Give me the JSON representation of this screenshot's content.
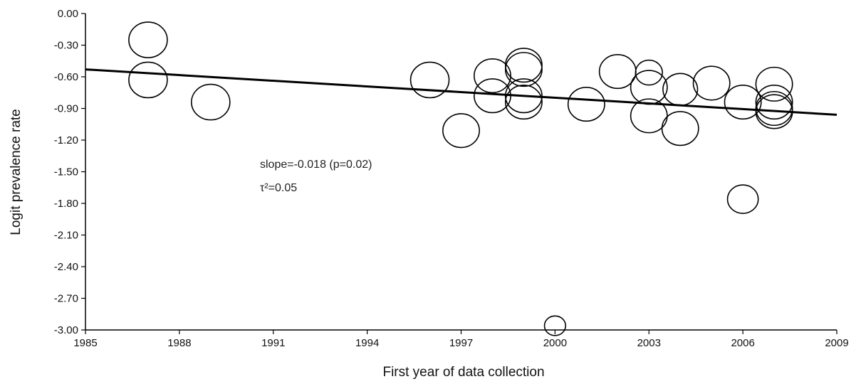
{
  "chart_data": {
    "type": "scatter",
    "xlabel": "First year of data collection",
    "ylabel": "Logit prevalence rate",
    "xlim": [
      1985,
      2009
    ],
    "ylim": [
      -3.0,
      0.0
    ],
    "x_ticks": [
      "1985",
      "1988",
      "1991",
      "1994",
      "1997",
      "2000",
      "2003",
      "2006",
      "2009"
    ],
    "x_tick_values": [
      1985,
      1988,
      1991,
      1994,
      1997,
      2000,
      2003,
      2006,
      2009
    ],
    "y_ticks": [
      "0.00",
      "-0.30",
      "-0.60",
      "-0.90",
      "-1.20",
      "-1.50",
      "-1.80",
      "-2.10",
      "-2.40",
      "-2.70",
      "-3.00"
    ],
    "y_tick_values": [
      0.0,
      -0.3,
      -0.6,
      -0.9,
      -1.2,
      -1.5,
      -1.8,
      -2.1,
      -2.4,
      -2.7,
      -3.0
    ],
    "grid": false,
    "annotations": [
      "slope=-0.018 (p=0.02)",
      "τ²=0.05"
    ],
    "regression_line": {
      "x": [
        1985,
        2009
      ],
      "y": [
        -0.53,
        -0.96
      ]
    },
    "points": [
      {
        "x": 1987.0,
        "y": -0.25,
        "weight": 1.0
      },
      {
        "x": 1987.0,
        "y": -0.63,
        "weight": 1.0
      },
      {
        "x": 1989.0,
        "y": -0.84,
        "weight": 1.0
      },
      {
        "x": 1996.0,
        "y": -0.63,
        "weight": 1.0
      },
      {
        "x": 1997.0,
        "y": -1.11,
        "weight": 0.95
      },
      {
        "x": 1998.0,
        "y": -0.59,
        "weight": 0.95
      },
      {
        "x": 1998.0,
        "y": -0.78,
        "weight": 0.95
      },
      {
        "x": 1999.0,
        "y": -0.49,
        "weight": 0.95
      },
      {
        "x": 1999.0,
        "y": -0.53,
        "weight": 0.95
      },
      {
        "x": 1999.0,
        "y": -0.78,
        "weight": 0.95
      },
      {
        "x": 1999.0,
        "y": -0.84,
        "weight": 0.95
      },
      {
        "x": 2000.0,
        "y": -2.96,
        "weight": 0.55
      },
      {
        "x": 2001.0,
        "y": -0.86,
        "weight": 0.95
      },
      {
        "x": 2002.0,
        "y": -0.55,
        "weight": 0.95
      },
      {
        "x": 2003.0,
        "y": -0.56,
        "weight": 0.7
      },
      {
        "x": 2003.0,
        "y": -0.7,
        "weight": 0.95
      },
      {
        "x": 2003.0,
        "y": -0.97,
        "weight": 0.95
      },
      {
        "x": 2004.0,
        "y": -0.72,
        "weight": 0.9
      },
      {
        "x": 2004.0,
        "y": -1.09,
        "weight": 0.95
      },
      {
        "x": 2005.0,
        "y": -0.66,
        "weight": 0.95
      },
      {
        "x": 2006.0,
        "y": -0.84,
        "weight": 0.95
      },
      {
        "x": 2006.0,
        "y": -1.76,
        "weight": 0.8
      },
      {
        "x": 2007.0,
        "y": -0.67,
        "weight": 0.95
      },
      {
        "x": 2007.0,
        "y": -0.84,
        "weight": 0.95
      },
      {
        "x": 2007.0,
        "y": -0.9,
        "weight": 0.95
      },
      {
        "x": 2007.0,
        "y": -0.93,
        "weight": 0.95
      }
    ]
  }
}
